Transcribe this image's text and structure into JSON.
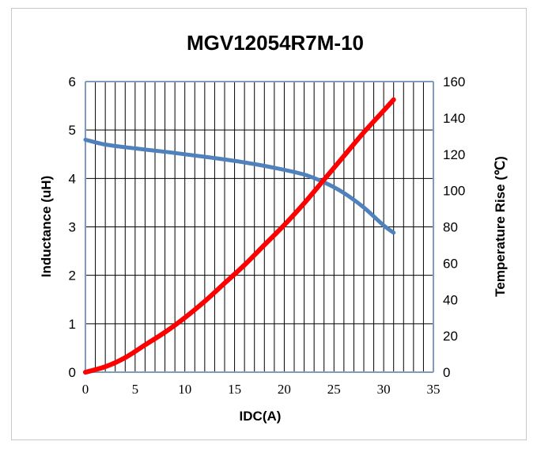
{
  "chart_data": {
    "type": "line",
    "title": "MGV12054R7M-10",
    "xlabel": "IDC(A)",
    "ylabel": "Inductance (uH)",
    "y2label": "Temperature Rise (℃)",
    "xlim": [
      0,
      35
    ],
    "ylim": [
      0,
      6
    ],
    "y2lim": [
      0,
      160
    ],
    "x_ticks": [
      "0",
      "5",
      "10",
      "15",
      "20",
      "25",
      "30",
      "35"
    ],
    "y_ticks": [
      "0",
      "1",
      "2",
      "3",
      "4",
      "5",
      "6"
    ],
    "y2_ticks": [
      "0",
      "20",
      "40",
      "60",
      "80",
      "100",
      "120",
      "140",
      "160"
    ],
    "grid": true,
    "series": [
      {
        "axis": "left",
        "color": "#4f81bd",
        "x": [
          0,
          2,
          5,
          8,
          10,
          13,
          16,
          19,
          22,
          24,
          26,
          28,
          30,
          31
        ],
        "y": [
          4.8,
          4.7,
          4.62,
          4.55,
          4.5,
          4.42,
          4.33,
          4.22,
          4.08,
          3.92,
          3.7,
          3.4,
          3.03,
          2.88
        ]
      },
      {
        "axis": "right",
        "color": "#ff0000",
        "x": [
          0,
          2,
          4,
          6,
          8,
          10,
          12,
          14,
          16,
          18,
          20,
          22,
          24,
          26,
          28,
          30,
          31
        ],
        "y": [
          0,
          3,
          8,
          15,
          22,
          30,
          39,
          49,
          59,
          70,
          81,
          93,
          106,
          119,
          132,
          144,
          150
        ]
      }
    ]
  }
}
